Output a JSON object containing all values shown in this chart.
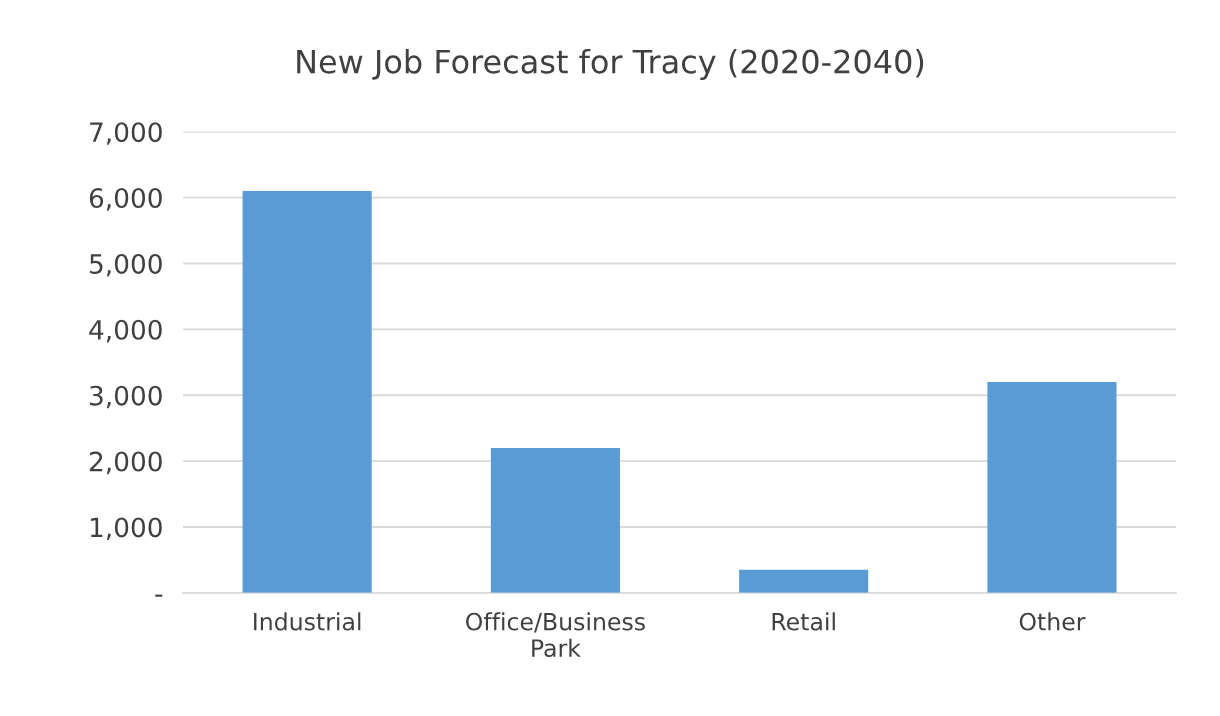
{
  "chart_data": {
    "type": "bar",
    "title": "New Job Forecast for Tracy (2020-2040)",
    "categories": [
      "Industrial",
      "Office/Business Park",
      "Retail",
      "Other"
    ],
    "values": [
      6100,
      2200,
      350,
      3200
    ],
    "color": "#5b9bd5",
    "ylim": [
      0,
      7000
    ],
    "yticks": [
      {
        "value": 0,
        "label": "-"
      },
      {
        "value": 1000,
        "label": "1,000"
      },
      {
        "value": 2000,
        "label": "2,000"
      },
      {
        "value": 3000,
        "label": "3,000"
      },
      {
        "value": 4000,
        "label": "4,000"
      },
      {
        "value": 5000,
        "label": "5,000"
      },
      {
        "value": 6000,
        "label": "6,000"
      },
      {
        "value": 7000,
        "label": "7,000"
      }
    ],
    "grid": "y",
    "legend": false
  }
}
